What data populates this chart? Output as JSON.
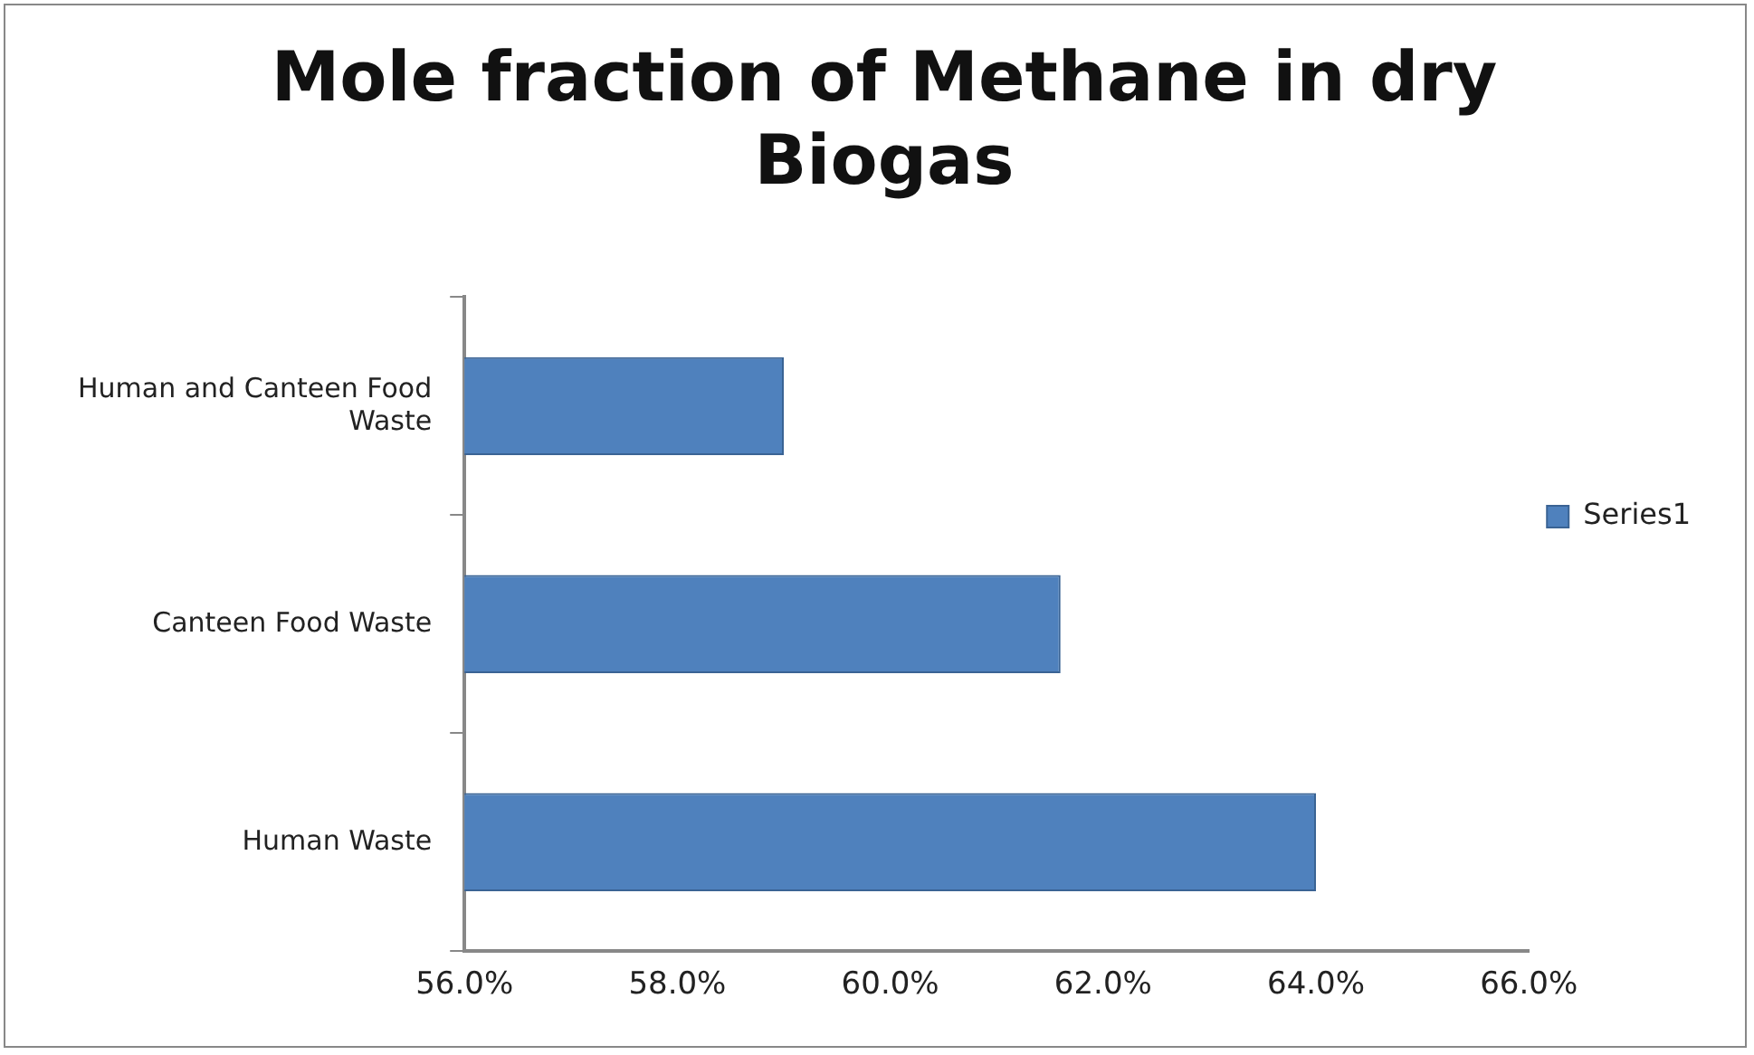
{
  "chart_data": {
    "type": "bar",
    "orientation": "horizontal",
    "title": "Mole fraction of Methane in dry Biogas",
    "categories": [
      "Human and Canteen Food Waste",
      "Canteen Food Waste",
      "Human Waste"
    ],
    "series": [
      {
        "name": "Series1",
        "color": "#4f81bd",
        "values": [
          59.0,
          61.6,
          64.0
        ]
      }
    ],
    "xlim": [
      56,
      66
    ],
    "xticks": [
      {
        "value": 56,
        "label": "56.0%"
      },
      {
        "value": 58,
        "label": "58.0%"
      },
      {
        "value": 60,
        "label": "60.0%"
      },
      {
        "value": 62,
        "label": "62.0%"
      },
      {
        "value": 64,
        "label": "64.0%"
      },
      {
        "value": 66,
        "label": "66.0%"
      }
    ],
    "grid": false,
    "legend": "right"
  }
}
